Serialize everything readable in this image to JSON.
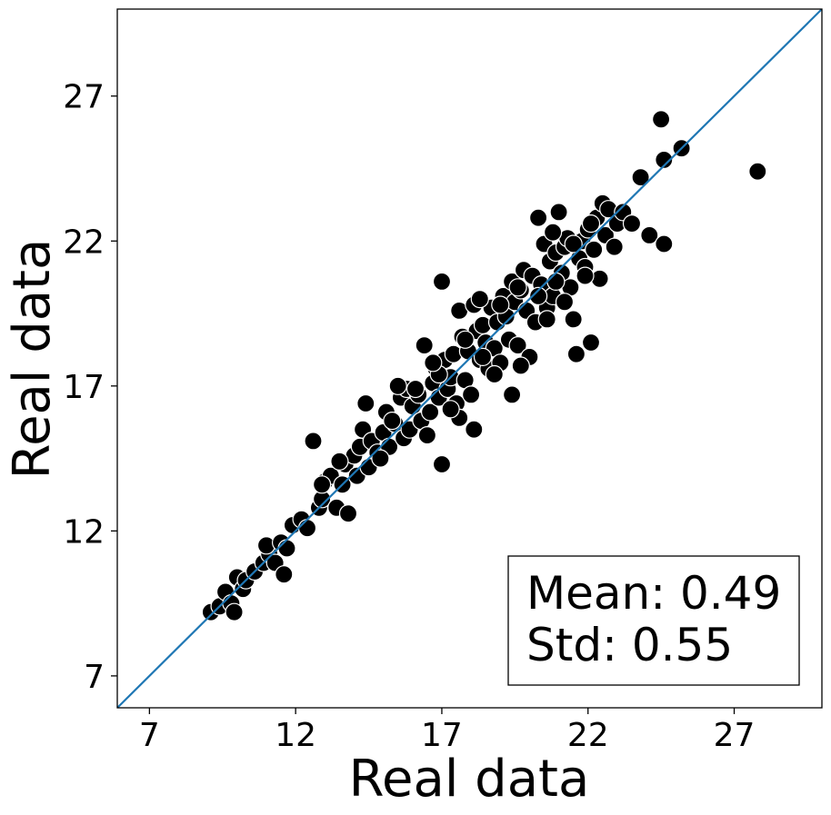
{
  "chart_data": {
    "type": "scatter",
    "title": "",
    "xlabel": "Real data",
    "ylabel": "Real data",
    "xlim": [
      5.9,
      30.0
    ],
    "ylim": [
      5.9,
      30.0
    ],
    "xticks": [
      7,
      12,
      17,
      22,
      27
    ],
    "yticks": [
      7,
      12,
      17,
      22,
      27
    ],
    "xtick_labels": [
      "7",
      "12",
      "17",
      "22",
      "27"
    ],
    "ytick_labels": [
      "7",
      "12",
      "17",
      "22",
      "27"
    ],
    "grid": false,
    "identity_line": true,
    "identity_line_color": "#1f77b4",
    "marker_color": "#000000",
    "marker_edge": "#ffffff",
    "annotation": {
      "mean_label": "Mean: 0.49",
      "std_label": "Std: 0.55",
      "position": "bottom-right"
    },
    "points": [
      [
        9.1,
        9.2
      ],
      [
        9.4,
        9.4
      ],
      [
        9.6,
        9.9
      ],
      [
        9.8,
        9.5
      ],
      [
        10.0,
        10.4
      ],
      [
        10.2,
        10.0
      ],
      [
        9.9,
        9.2
      ],
      [
        10.3,
        10.3
      ],
      [
        10.6,
        10.6
      ],
      [
        10.9,
        10.9
      ],
      [
        11.1,
        11.2
      ],
      [
        11.3,
        10.9
      ],
      [
        11.0,
        11.5
      ],
      [
        11.5,
        11.6
      ],
      [
        11.7,
        11.4
      ],
      [
        11.9,
        12.2
      ],
      [
        11.6,
        10.5
      ],
      [
        12.2,
        12.4
      ],
      [
        12.4,
        12.1
      ],
      [
        12.8,
        12.8
      ],
      [
        12.6,
        15.1
      ],
      [
        12.9,
        13.1
      ],
      [
        13.0,
        13.7
      ],
      [
        13.2,
        13.9
      ],
      [
        13.4,
        12.8
      ],
      [
        13.6,
        13.6
      ],
      [
        13.8,
        12.6
      ],
      [
        13.7,
        14.3
      ],
      [
        14.0,
        14.6
      ],
      [
        14.2,
        14.9
      ],
      [
        14.1,
        13.9
      ],
      [
        14.3,
        15.5
      ],
      [
        14.4,
        16.4
      ],
      [
        14.6,
        15.1
      ],
      [
        14.8,
        14.7
      ],
      [
        15.0,
        15.4
      ],
      [
        15.1,
        16.1
      ],
      [
        15.2,
        14.9
      ],
      [
        15.4,
        15.7
      ],
      [
        15.6,
        16.6
      ],
      [
        15.7,
        15.2
      ],
      [
        15.8,
        16.9
      ],
      [
        15.9,
        15.5
      ],
      [
        16.0,
        16.3
      ],
      [
        16.2,
        16.7
      ],
      [
        16.3,
        15.8
      ],
      [
        16.4,
        18.4
      ],
      [
        16.5,
        15.3
      ],
      [
        16.6,
        16.1
      ],
      [
        16.7,
        17.1
      ],
      [
        16.8,
        17.6
      ],
      [
        16.9,
        16.6
      ],
      [
        17.0,
        14.3
      ],
      [
        17.1,
        17.9
      ],
      [
        17.0,
        20.6
      ],
      [
        17.2,
        16.9
      ],
      [
        17.3,
        17.3
      ],
      [
        17.4,
        18.1
      ],
      [
        17.5,
        16.4
      ],
      [
        17.6,
        15.9
      ],
      [
        17.6,
        19.6
      ],
      [
        17.7,
        18.7
      ],
      [
        17.8,
        17.2
      ],
      [
        17.9,
        18.2
      ],
      [
        18.0,
        16.7
      ],
      [
        18.1,
        15.5
      ],
      [
        18.1,
        19.8
      ],
      [
        18.2,
        18.9
      ],
      [
        18.3,
        17.9
      ],
      [
        18.4,
        19.1
      ],
      [
        18.5,
        18.5
      ],
      [
        18.6,
        17.6
      ],
      [
        18.7,
        19.7
      ],
      [
        18.8,
        18.3
      ],
      [
        18.9,
        19.2
      ],
      [
        19.0,
        17.8
      ],
      [
        19.1,
        20.1
      ],
      [
        19.2,
        19.4
      ],
      [
        19.3,
        18.6
      ],
      [
        19.4,
        20.6
      ],
      [
        19.4,
        16.7
      ],
      [
        19.5,
        19.9
      ],
      [
        19.6,
        18.4
      ],
      [
        19.7,
        20.3
      ],
      [
        19.8,
        21.0
      ],
      [
        19.9,
        19.6
      ],
      [
        20.0,
        18.0
      ],
      [
        20.1,
        20.8
      ],
      [
        20.2,
        19.2
      ],
      [
        20.3,
        22.8
      ],
      [
        20.4,
        20.5
      ],
      [
        20.5,
        21.9
      ],
      [
        20.6,
        19.7
      ],
      [
        20.7,
        21.3
      ],
      [
        20.8,
        20.1
      ],
      [
        20.9,
        21.6
      ],
      [
        21.0,
        23.0
      ],
      [
        21.1,
        20.9
      ],
      [
        21.2,
        21.8
      ],
      [
        21.3,
        22.1
      ],
      [
        21.4,
        20.4
      ],
      [
        21.5,
        19.3
      ],
      [
        21.6,
        18.1
      ],
      [
        21.7,
        21.4
      ],
      [
        21.8,
        22.0
      ],
      [
        21.9,
        21.1
      ],
      [
        22.0,
        22.4
      ],
      [
        22.1,
        18.5
      ],
      [
        22.2,
        21.7
      ],
      [
        22.3,
        22.8
      ],
      [
        22.4,
        20.7
      ],
      [
        22.5,
        23.3
      ],
      [
        22.6,
        22.2
      ],
      [
        22.7,
        23.1
      ],
      [
        22.9,
        21.8
      ],
      [
        23.0,
        22.6
      ],
      [
        23.2,
        23.0
      ],
      [
        23.5,
        22.6
      ],
      [
        23.8,
        24.2
      ],
      [
        24.1,
        22.2
      ],
      [
        24.5,
        26.2
      ],
      [
        24.6,
        21.9
      ],
      [
        24.6,
        24.8
      ],
      [
        25.2,
        25.2
      ],
      [
        27.8,
        24.4
      ],
      [
        12.9,
        13.6
      ],
      [
        13.5,
        14.4
      ],
      [
        14.5,
        14.2
      ],
      [
        15.3,
        15.8
      ],
      [
        16.1,
        16.9
      ],
      [
        16.9,
        17.4
      ],
      [
        17.8,
        18.6
      ],
      [
        18.4,
        18.0
      ],
      [
        19.0,
        19.8
      ],
      [
        19.6,
        20.4
      ],
      [
        20.3,
        20.1
      ],
      [
        20.9,
        20.6
      ],
      [
        21.5,
        21.9
      ],
      [
        22.1,
        22.6
      ],
      [
        15.5,
        17.0
      ],
      [
        18.8,
        17.4
      ],
      [
        19.7,
        17.7
      ],
      [
        20.6,
        19.3
      ],
      [
        21.9,
        20.8
      ],
      [
        14.9,
        14.5
      ],
      [
        16.7,
        17.8
      ],
      [
        17.3,
        16.2
      ],
      [
        20.8,
        22.3
      ],
      [
        18.3,
        20.0
      ],
      [
        21.2,
        19.9
      ]
    ]
  }
}
